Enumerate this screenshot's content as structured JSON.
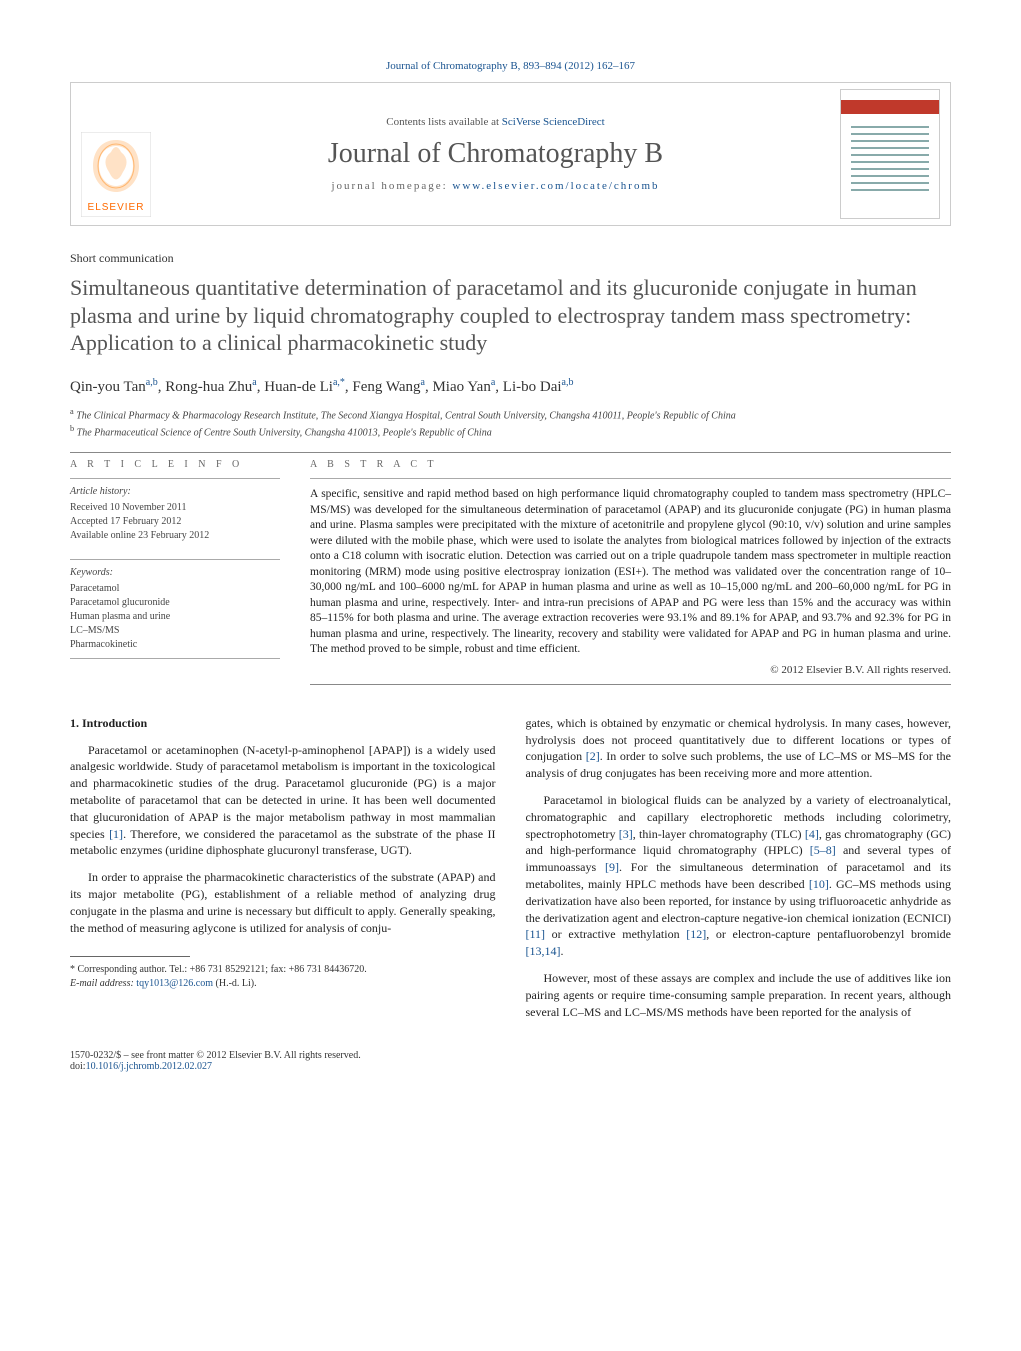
{
  "top_citation_prefix": "Journal of Chromatography B, 893–894 (2012) 162–167",
  "header": {
    "contents_line_prefix": "Contents lists available at ",
    "contents_link": "SciVerse ScienceDirect",
    "journal_name": "Journal of Chromatography B",
    "homepage_prefix": "journal homepage: ",
    "homepage_link": "www.elsevier.com/locate/chromb"
  },
  "article_type": "Short communication",
  "title": "Simultaneous quantitative determination of paracetamol and its glucuronide conjugate in human plasma and urine by liquid chromatography coupled to electrospray tandem mass spectrometry: Application to a clinical pharmacokinetic study",
  "authors_html": "Qin-you Tan<sup>a,b</sup>, Rong-hua Zhu<sup>a</sup>, Huan-de Li<sup>a,*</sup>, Feng Wang<sup>a</sup>, Miao Yan<sup>a</sup>, Li-bo Dai<sup>a,b</sup>",
  "affiliations": [
    {
      "sup": "a",
      "text": "The Clinical Pharmacy & Pharmacology Research Institute, The Second Xiangya Hospital, Central South University, Changsha 410011, People's Republic of China"
    },
    {
      "sup": "b",
      "text": "The Pharmaceutical Science of Centre South University, Changsha 410013, People's Republic of China"
    }
  ],
  "article_info_heading": "A R T I C L E   I N F O",
  "abstract_heading": "A B S T R A C T",
  "history": {
    "label": "Article history:",
    "received": "Received 10 November 2011",
    "accepted": "Accepted 17 February 2012",
    "online": "Available online 23 February 2012"
  },
  "keywords": {
    "label": "Keywords:",
    "items": [
      "Paracetamol",
      "Paracetamol glucuronide",
      "Human plasma and urine",
      "LC–MS/MS",
      "Pharmacokinetic"
    ]
  },
  "abstract": "A specific, sensitive and rapid method based on high performance liquid chromatography coupled to tandem mass spectrometry (HPLC–MS/MS) was developed for the simultaneous determination of paracetamol (APAP) and its glucuronide conjugate (PG) in human plasma and urine. Plasma samples were precipitated with the mixture of acetonitrile and propylene glycol (90:10, v/v) solution and urine samples were diluted with the mobile phase, which were used to isolate the analytes from biological matrices followed by injection of the extracts onto a C18 column with isocratic elution. Detection was carried out on a triple quadrupole tandem mass spectrometer in multiple reaction monitoring (MRM) mode using positive electrospray ionization (ESI+). The method was validated over the concentration range of 10–30,000 ng/mL and 100–6000 ng/mL for APAP in human plasma and urine as well as 10–15,000 ng/mL and 200–60,000 ng/mL for PG in human plasma and urine, respectively. Inter- and intra-run precisions of APAP and PG were less than 15% and the accuracy was within 85–115% for both plasma and urine. The average extraction recoveries were 93.1% and 89.1% for APAP, and 93.7% and 92.3% for PG in human plasma and urine, respectively. The linearity, recovery and stability were validated for APAP and PG in human plasma and urine. The method proved to be simple, robust and time efficient.",
  "copyright": "© 2012 Elsevier B.V. All rights reserved.",
  "section1_heading": "1. Introduction",
  "para1": "Paracetamol or acetaminophen (N-acetyl-p-aminophenol [APAP]) is a widely used analgesic worldwide. Study of paracetamol metabolism is important in the toxicological and pharmacokinetic studies of the drug. Paracetamol glucuronide (PG) is a major metabolite of paracetamol that can be detected in urine. It has been well documented that glucuronidation of APAP is the major metabolism pathway in most mammalian species [1]. Therefore, we considered the paracetamol as the substrate of the phase II metabolic enzymes (uridine diphosphate glucuronyl transferase, UGT).",
  "para2": "In order to appraise the pharmacokinetic characteristics of the substrate (APAP) and its major metabolite (PG), establishment of a reliable method of analyzing drug conjugate in the plasma and urine is necessary but difficult to apply. Generally speaking, the method of measuring aglycone is utilized for analysis of conju-",
  "para3": "gates, which is obtained by enzymatic or chemical hydrolysis. In many cases, however, hydrolysis does not proceed quantitatively due to different locations or types of conjugation [2]. In order to solve such problems, the use of LC–MS or MS–MS for the analysis of drug conjugates has been receiving more and more attention.",
  "para4": "Paracetamol in biological fluids can be analyzed by a variety of electroanalytical, chromatographic and capillary electrophoretic methods including colorimetry, spectrophotometry [3], thin-layer chromatography (TLC) [4], gas chromatography (GC) and high-performance liquid chromatography (HPLC) [5–8] and several types of immunoassays [9]. For the simultaneous determination of paracetamol and its metabolites, mainly HPLC methods have been described [10]. GC–MS methods using derivatization have also been reported, for instance by using trifluoroacetic anhydride as the derivatization agent and electron-capture negative-ion chemical ionization (ECNICI) [11] or extractive methylation [12], or electron-capture pentafluorobenzyl bromide [13,14].",
  "para5": "However, most of these assays are complex and include the use of additives like ion pairing agents or require time-consuming sample preparation. In recent years, although several LC–MS and LC–MS/MS methods have been reported for the analysis of",
  "footnote": {
    "corr": "* Corresponding author. Tel.: +86 731 85292121; fax: +86 731 84436720.",
    "email_label": "E-mail address: ",
    "email": "tqy1013@126.com",
    "email_who": " (H.-d. Li)."
  },
  "footer": {
    "left1": "1570-0232/$ – see front matter © 2012 Elsevier B.V. All rights reserved.",
    "left2_prefix": "doi:",
    "left2_link": "10.1016/j.jchromb.2012.02.027"
  },
  "colors": {
    "link": "#1a5490",
    "text": "#333333",
    "rule": "#888888",
    "elsevier_orange": "#ff6a00",
    "elsevier_border": "#d8d8d8",
    "cover_red": "#c0392b"
  }
}
